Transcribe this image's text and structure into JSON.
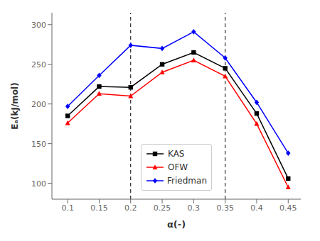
{
  "chart_data": {
    "type": "line",
    "xlabel": "α(-)",
    "ylabel": "Eₐ(kJ/mol)",
    "x": [
      0.1,
      0.15,
      0.2,
      0.25,
      0.3,
      0.35,
      0.4,
      0.45
    ],
    "series": [
      {
        "name": "KAS",
        "color": "black",
        "marker": "square",
        "values": [
          185,
          222,
          221,
          250,
          265,
          245,
          188,
          106
        ]
      },
      {
        "name": "OFW",
        "color": "red",
        "marker": "triangle",
        "values": [
          176,
          213,
          210,
          240,
          255,
          235,
          175,
          95
        ]
      },
      {
        "name": "Friedman",
        "color": "blue",
        "marker": "diamond",
        "values": [
          197,
          236,
          274,
          270,
          291,
          258,
          202,
          138
        ]
      }
    ],
    "vlines": [
      0.2,
      0.35
    ],
    "xlim": [
      0.075,
      0.47
    ],
    "ylim": [
      80,
      315
    ],
    "xticks": [
      0.1,
      0.15,
      0.2,
      0.25,
      0.3,
      0.35,
      0.4,
      0.45
    ],
    "yticks": [
      100,
      150,
      200,
      250,
      300
    ],
    "grid": false,
    "legend": "lower center"
  }
}
